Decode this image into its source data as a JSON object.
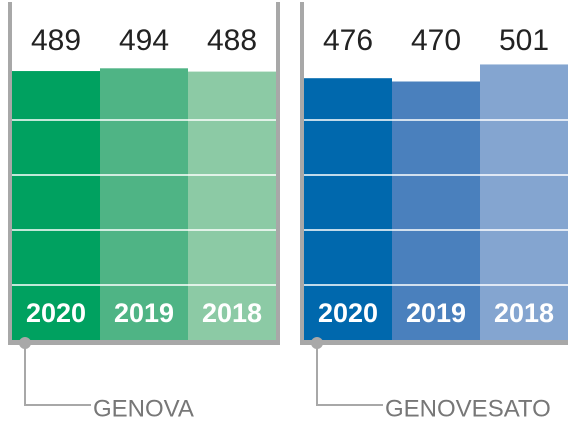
{
  "chart_data": [
    {
      "type": "bar",
      "label": "GENOVA",
      "categories": [
        "2020",
        "2019",
        "2018"
      ],
      "values": [
        489,
        494,
        488
      ],
      "colors": [
        "#00a160",
        "#4fb485",
        "#8ccaa5"
      ],
      "ylim": [
        0,
        600
      ],
      "yticks": [
        100,
        200,
        300,
        400
      ],
      "grid": true
    },
    {
      "type": "bar",
      "label": "GENOVESATO",
      "categories": [
        "2020",
        "2019",
        "2018"
      ],
      "values": [
        476,
        470,
        501
      ],
      "colors": [
        "#0068ad",
        "#4a80bd",
        "#84a5d0"
      ],
      "ylim": [
        0,
        600
      ],
      "yticks": [
        100,
        200,
        300,
        400
      ],
      "grid": true
    }
  ]
}
